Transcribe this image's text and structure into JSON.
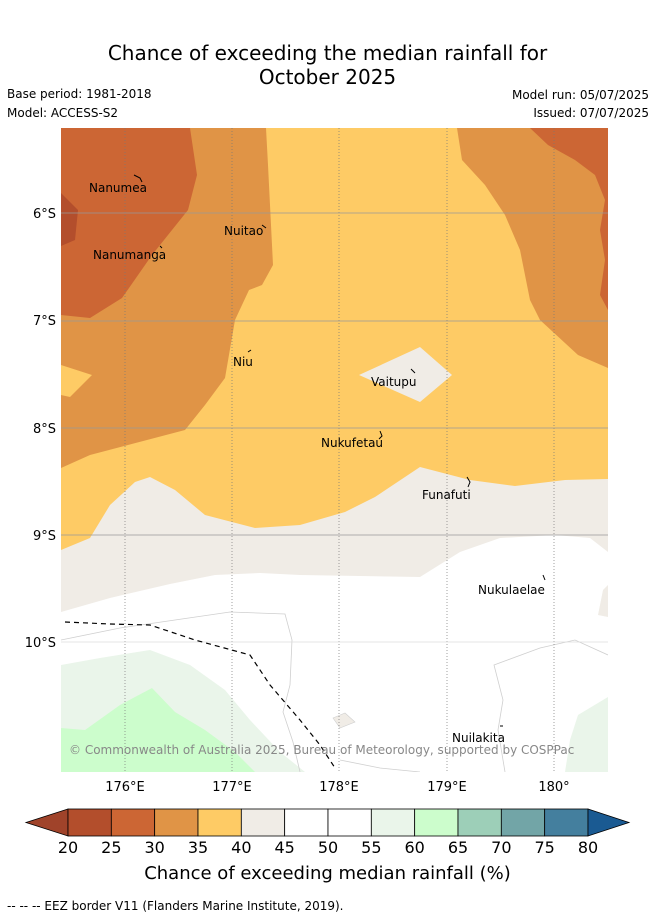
{
  "title": {
    "line1": "Chance of exceeding the median rainfall for",
    "line2": "October 2025"
  },
  "meta": {
    "base_period": "Base period: 1981-2018",
    "model": "Model: ACCESS-S2",
    "model_run": "Model run: 05/07/2025",
    "issued": "Issued: 07/07/2025"
  },
  "map": {
    "lon_ticks": [
      "176°E",
      "177°E",
      "178°E",
      "179°E",
      "180°"
    ],
    "lat_ticks": [
      "6°S",
      "7°S",
      "8°S",
      "9°S",
      "10°S"
    ],
    "places": [
      {
        "name": "Nanumea"
      },
      {
        "name": "Nuitao"
      },
      {
        "name": "Nanumanga"
      },
      {
        "name": "Niu"
      },
      {
        "name": "Vaitupu"
      },
      {
        "name": "Nukufetau"
      },
      {
        "name": "Funafuti"
      },
      {
        "name": "Nukulaelae"
      },
      {
        "name": "Nuilakita"
      }
    ],
    "copyright": "© Commonwealth of Australia 2025, Bureau of Meteorology, supported by COSPPac"
  },
  "colorbar": {
    "labels": [
      "20",
      "25",
      "30",
      "35",
      "40",
      "45",
      "50",
      "55",
      "60",
      "65",
      "70",
      "75",
      "80"
    ],
    "colors": [
      "#a0432a",
      "#b34e2c",
      "#cc6634",
      "#e09446",
      "#fecb65",
      "#f0ece6",
      "#ffffff",
      "#ffffff",
      "#eaf5ea",
      "#ccfdcc",
      "#9dcfb8",
      "#72a5a7",
      "#447f9e",
      "#1a5a92"
    ],
    "axis_title": "Chance of exceeding median rainfall (%)"
  },
  "footnote": "--  --  -- EEZ border V11 (Flanders Marine Institute, 2019)."
}
